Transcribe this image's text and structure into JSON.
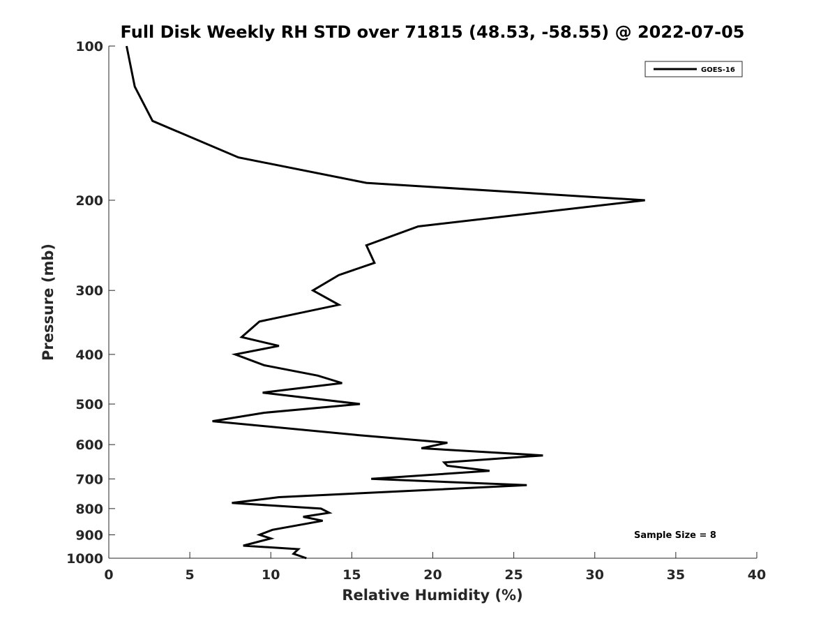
{
  "chart_data": {
    "type": "line",
    "title": "Full Disk Weekly RH STD over 71815 (48.53, -58.55) @ 2022-07-05",
    "xlabel": "Relative Humidity (%)",
    "ylabel": "Pressure (mb)",
    "xlim": [
      0,
      40
    ],
    "ylim": [
      100,
      1000
    ],
    "yscale": "log",
    "y_reversed": true,
    "xticks": [
      0,
      5,
      10,
      15,
      20,
      25,
      30,
      35,
      40
    ],
    "yticks": [
      100,
      200,
      300,
      400,
      500,
      600,
      700,
      800,
      900,
      1000
    ],
    "legend_position": "top-right",
    "annotation": "Sample Size = 8",
    "series": [
      {
        "name": "GOES-16",
        "color": "#000000",
        "points": [
          [
            1.1,
            100
          ],
          [
            1.6,
            120
          ],
          [
            2.7,
            140
          ],
          [
            8.0,
            165
          ],
          [
            15.9,
            185
          ],
          [
            33.1,
            200
          ],
          [
            19.1,
            225
          ],
          [
            15.9,
            245
          ],
          [
            16.4,
            265
          ],
          [
            14.2,
            280
          ],
          [
            12.6,
            300
          ],
          [
            14.2,
            320
          ],
          [
            9.3,
            345
          ],
          [
            8.2,
            370
          ],
          [
            10.5,
            385
          ],
          [
            7.8,
            400
          ],
          [
            9.6,
            420
          ],
          [
            12.9,
            440
          ],
          [
            14.4,
            455
          ],
          [
            9.5,
            475
          ],
          [
            15.5,
            500
          ],
          [
            9.6,
            520
          ],
          [
            6.4,
            540
          ],
          [
            15.4,
            575
          ],
          [
            20.9,
            595
          ],
          [
            19.3,
            610
          ],
          [
            26.8,
            630
          ],
          [
            20.7,
            650
          ],
          [
            20.9,
            660
          ],
          [
            23.5,
            675
          ],
          [
            16.2,
            700
          ],
          [
            25.8,
            720
          ],
          [
            10.5,
            760
          ],
          [
            7.6,
            780
          ],
          [
            13.1,
            800
          ],
          [
            13.6,
            815
          ],
          [
            12.0,
            830
          ],
          [
            13.2,
            845
          ],
          [
            10.1,
            880
          ],
          [
            9.3,
            900
          ],
          [
            10.0,
            915
          ],
          [
            8.3,
            945
          ],
          [
            11.7,
            960
          ],
          [
            11.4,
            980
          ],
          [
            12.2,
            1000
          ]
        ]
      }
    ]
  }
}
